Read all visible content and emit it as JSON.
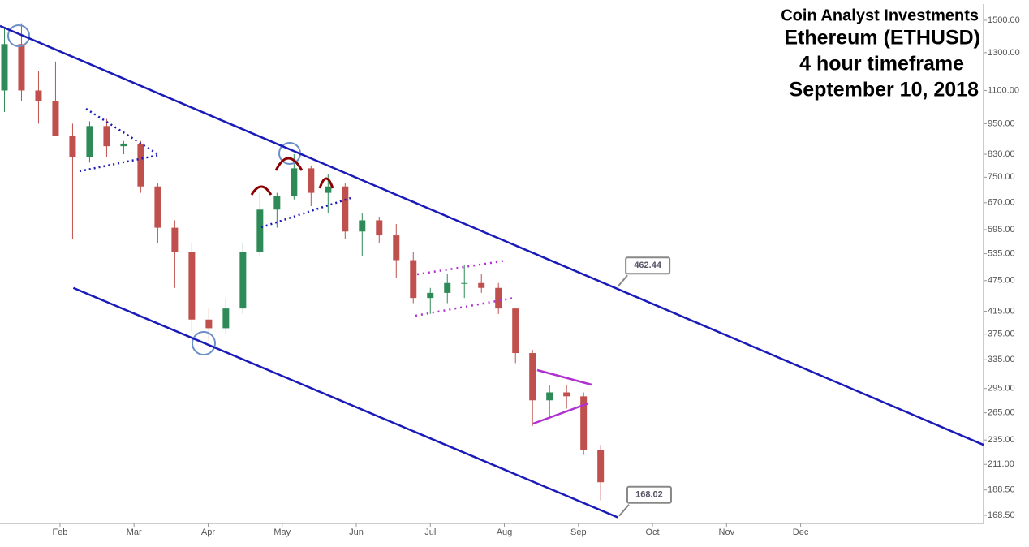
{
  "chart_data": {
    "type": "candlestick",
    "title_lines": [
      "Coin Analyst Investments",
      "Ethereum (ETHUSD)",
      "4 hour timeframe",
      "September 10, 2018"
    ],
    "x": [
      1.25,
      1.48,
      1.71,
      1.94,
      2.17,
      2.4,
      2.63,
      2.86,
      3.09,
      3.32,
      3.55,
      3.78,
      4.01,
      4.24,
      4.47,
      4.7,
      4.93,
      5.16,
      5.39,
      5.62,
      5.85,
      6.08,
      6.31,
      6.54,
      6.77,
      7.0,
      7.23,
      7.46,
      7.69,
      7.92,
      8.15,
      8.38,
      8.61,
      8.84,
      9.07,
      9.3
    ],
    "open": [
      1100,
      1350,
      1100,
      1050,
      900,
      820,
      940,
      860,
      870,
      720,
      600,
      540,
      400,
      385,
      420,
      540,
      650,
      690,
      780,
      700,
      720,
      590,
      620,
      580,
      520,
      440,
      450,
      470,
      470,
      460,
      420,
      345,
      280,
      290,
      285,
      225
    ],
    "high": [
      1450,
      1480,
      1200,
      1250,
      950,
      960,
      970,
      880,
      880,
      730,
      620,
      560,
      420,
      440,
      560,
      700,
      700,
      830,
      790,
      760,
      730,
      640,
      630,
      610,
      540,
      460,
      490,
      510,
      490,
      470,
      420,
      350,
      300,
      300,
      290,
      230
    ],
    "low": [
      1000,
      1050,
      950,
      900,
      570,
      800,
      820,
      830,
      700,
      560,
      460,
      380,
      365,
      375,
      410,
      530,
      600,
      680,
      660,
      640,
      570,
      530,
      560,
      480,
      430,
      410,
      430,
      440,
      450,
      410,
      330,
      250,
      260,
      270,
      220,
      180
    ],
    "close": [
      1350,
      1100,
      1050,
      900,
      820,
      940,
      860,
      870,
      720,
      600,
      540,
      400,
      385,
      420,
      540,
      650,
      690,
      780,
      700,
      720,
      590,
      620,
      580,
      520,
      440,
      450,
      470,
      470,
      460,
      420,
      345,
      280,
      290,
      285,
      225,
      195
    ],
    "up_color": "#2e8b57",
    "down_color": "#c0504d",
    "log_scale": true,
    "xlim": [
      1.19,
      14.47
    ],
    "xticks": [
      {
        "value": 2,
        "label": "Feb"
      },
      {
        "value": 3,
        "label": "Mar"
      },
      {
        "value": 4,
        "label": "Apr"
      },
      {
        "value": 5,
        "label": "May"
      },
      {
        "value": 6,
        "label": "Jun"
      },
      {
        "value": 7,
        "label": "Jul"
      },
      {
        "value": 8,
        "label": "Aug"
      },
      {
        "value": 9,
        "label": "Sep"
      },
      {
        "value": 10,
        "label": "Oct"
      },
      {
        "value": 11,
        "label": "Nov"
      },
      {
        "value": 12,
        "label": "Dec"
      }
    ],
    "ylim": [
      165.5,
      1611
    ],
    "yticks": [
      {
        "value": 1500,
        "label": "1500.00"
      },
      {
        "value": 1300,
        "label": "1300.00"
      },
      {
        "value": 1100,
        "label": "1100.00"
      },
      {
        "value": 950,
        "label": "950.00"
      },
      {
        "value": 830,
        "label": "830.00"
      },
      {
        "value": 750,
        "label": "750.00"
      },
      {
        "value": 670,
        "label": "670.00"
      },
      {
        "value": 595,
        "label": "595.00"
      },
      {
        "value": 535,
        "label": "535.00"
      },
      {
        "value": 475,
        "label": "475.00"
      },
      {
        "value": 415,
        "label": "415.00"
      },
      {
        "value": 375,
        "label": "375.00"
      },
      {
        "value": 335,
        "label": "335.00"
      },
      {
        "value": 295,
        "label": "295.00"
      },
      {
        "value": 265,
        "label": "265.00"
      },
      {
        "value": 235,
        "label": "235.00"
      },
      {
        "value": 211,
        "label": "211.00"
      },
      {
        "value": 188.5,
        "label": "188.50"
      },
      {
        "value": 168.5,
        "label": "168.50"
      }
    ],
    "trendlines": [
      {
        "color": "#1a1ab8",
        "x": [
          1.19,
          14.47
        ],
        "y": [
          1463,
          230
        ]
      },
      {
        "color": "#1a1ab8",
        "x": [
          2.18,
          9.53
        ],
        "y": [
          460,
          167
        ]
      }
    ],
    "callouts": [
      {
        "x": 9.53,
        "value": 462.44
      },
      {
        "x": 9.55,
        "value": 168.02
      }
    ]
  }
}
